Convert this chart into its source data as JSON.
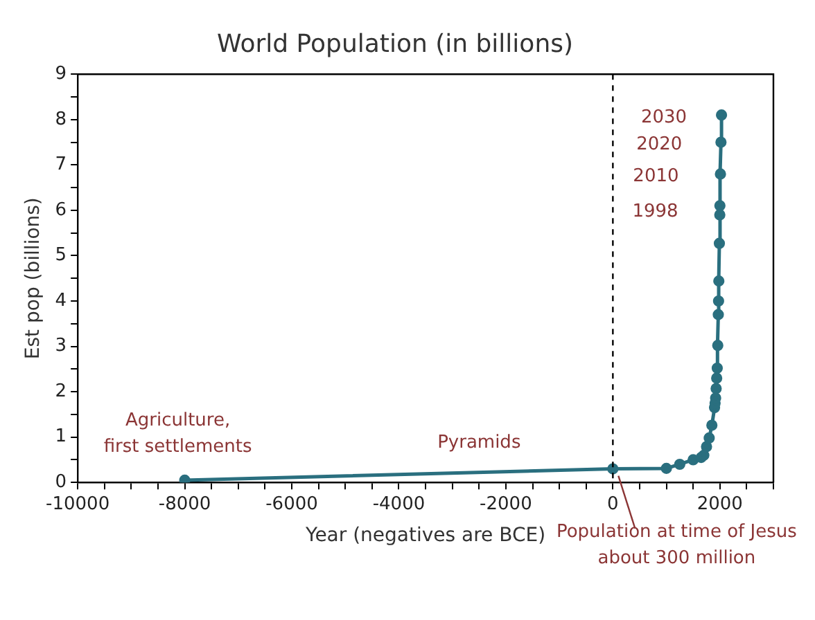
{
  "chart_data": {
    "type": "line",
    "title": "World Population (in billions)",
    "xlabel": "Year (negatives are BCE)",
    "ylabel": "Est pop (billions)",
    "x": [
      -8000,
      0,
      1000,
      1250,
      1500,
      1650,
      1700,
      1750,
      1800,
      1850,
      1900,
      1910,
      1920,
      1930,
      1940,
      1950,
      1960,
      1970,
      1975,
      1980,
      1990,
      1998,
      2000,
      2010,
      2020,
      2030
    ],
    "series": [
      {
        "color": "#2a6f7f",
        "values": [
          0.05,
          0.3,
          0.31,
          0.4,
          0.5,
          0.55,
          0.6,
          0.79,
          0.98,
          1.26,
          1.65,
          1.75,
          1.86,
          2.07,
          2.3,
          2.52,
          3.02,
          3.7,
          4.0,
          4.44,
          5.27,
          5.9,
          6.1,
          6.8,
          7.5,
          8.1
        ]
      }
    ],
    "marker": "circle",
    "line_style": "solid",
    "grid": false,
    "legend": false,
    "xlim": [
      -10000,
      3000
    ],
    "xticks": [
      -10000,
      {
        "value": -9500,
        "label": null
      },
      {
        "value": -9000,
        "label": null
      },
      {
        "value": -8500,
        "label": null
      },
      -8000,
      {
        "value": -7500,
        "label": null
      },
      {
        "value": -7000,
        "label": null
      },
      {
        "value": -6500,
        "label": null
      },
      -6000,
      {
        "value": -5500,
        "label": null
      },
      {
        "value": -5000,
        "label": null
      },
      {
        "value": -4500,
        "label": null
      },
      -4000,
      {
        "value": -3500,
        "label": null
      },
      {
        "value": -3000,
        "label": null
      },
      {
        "value": -2500,
        "label": null
      },
      -2000,
      {
        "value": -1500,
        "label": null
      },
      {
        "value": -1000,
        "label": null
      },
      {
        "value": -500,
        "label": null
      },
      0,
      {
        "value": 500,
        "label": null
      },
      {
        "value": 1000,
        "label": null
      },
      {
        "value": 1500,
        "label": null
      },
      2000,
      {
        "value": 2500,
        "label": null
      },
      {
        "value": 3000,
        "label": null
      }
    ],
    "ylim": [
      0,
      9
    ],
    "yticks": [
      0,
      {
        "value": 0.5,
        "label": null
      },
      1,
      {
        "value": 1.5,
        "label": null
      },
      2,
      {
        "value": 2.5,
        "label": null
      },
      3,
      {
        "value": 3.5,
        "label": null
      },
      4,
      {
        "value": 4.5,
        "label": null
      },
      5,
      {
        "value": 5.5,
        "label": null
      },
      6,
      {
        "value": 6.5,
        "label": null
      },
      7,
      {
        "value": 7.5,
        "label": null
      },
      8,
      {
        "value": 8.5,
        "label": null
      },
      9
    ],
    "ref_lines": [
      {
        "axis": "x",
        "value": 0,
        "color": "#000000",
        "line_style": "dashed"
      }
    ],
    "annotations": [
      {
        "text": "Agriculture,\nfirst settlements",
        "x": -8000,
        "y": 0.05
      },
      {
        "text": "Pyramids",
        "x": -2500,
        "y": 0.2
      },
      {
        "text": "Population at time of Jesus\nabout 300 million",
        "x": 0,
        "y": 0.3
      },
      {
        "text": "1998",
        "x": 1998,
        "y": 5.9
      },
      {
        "text": "2010",
        "x": 2010,
        "y": 6.8
      },
      {
        "text": "2020",
        "x": 2020,
        "y": 7.5
      },
      {
        "text": "2030",
        "x": 2030,
        "y": 8.1
      }
    ]
  }
}
